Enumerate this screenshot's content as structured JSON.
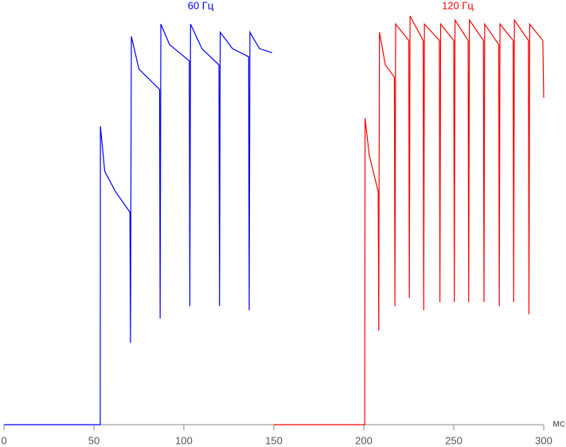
{
  "chart_data": {
    "type": "line",
    "x_label": "мс",
    "xlim": [
      0,
      300
    ],
    "xticks": [
      0,
      50,
      100,
      150,
      200,
      250,
      300
    ],
    "ylim": [
      0,
      100
    ],
    "series": [
      {
        "name": "60 Гц",
        "color": "#0000ff",
        "x": [
          0,
          53.5,
          53.6,
          56,
          62,
          70,
          70.3,
          70.8,
          75,
          86.5,
          86.8,
          87.2,
          92,
          103,
          103.3,
          103.7,
          110,
          119.5,
          119.8,
          120.2,
          127,
          136,
          136.3,
          136.7,
          142,
          149
        ],
        "values": [
          0,
          0,
          73,
          62,
          57,
          52,
          20,
          95,
          87,
          82,
          26,
          98,
          93,
          89,
          29,
          98,
          92,
          88,
          29,
          96,
          92,
          90,
          28,
          96,
          92,
          91
        ]
      },
      {
        "name": "120 Гц",
        "color": "#ff0000",
        "x": [
          150,
          200.5,
          200.7,
          203,
          208,
          208.3,
          208.7,
          212,
          217,
          217.3,
          217.7,
          225,
          225.3,
          225.7,
          233,
          233.3,
          233.7,
          242,
          242.3,
          242.7,
          250,
          250.3,
          250.7,
          258,
          258.3,
          258.7,
          266.5,
          266.8,
          267.2,
          275,
          275.3,
          275.7,
          283,
          283.3,
          283.7,
          291.5,
          291.8,
          292.2,
          299.5,
          300
        ],
        "values": [
          0,
          0,
          75,
          66,
          57,
          23,
          96,
          88,
          85,
          29,
          98,
          94,
          31,
          100,
          94,
          28,
          98,
          94,
          30,
          98,
          94,
          30,
          99,
          94,
          30,
          99,
          94,
          30,
          98,
          93,
          29,
          98,
          94,
          30,
          99,
          94,
          27,
          98,
          94,
          80
        ]
      }
    ]
  }
}
